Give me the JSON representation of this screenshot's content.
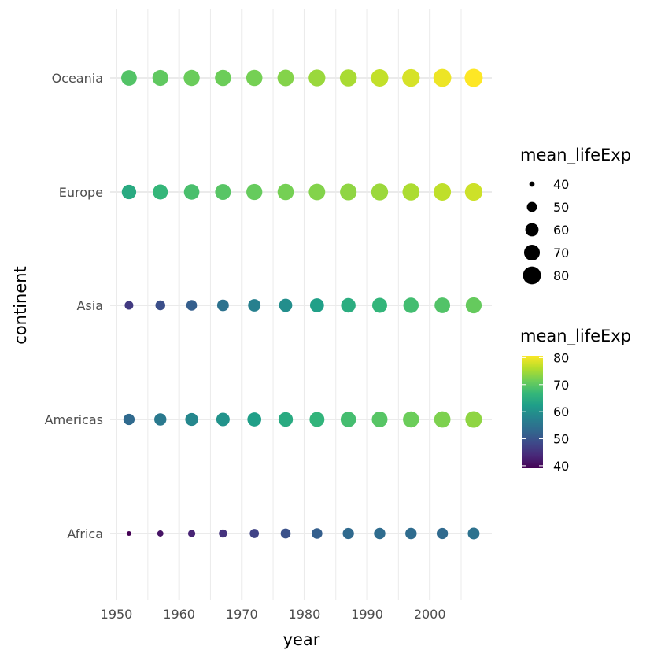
{
  "chart_data": {
    "type": "scatter",
    "xlabel": "year",
    "ylabel": "continent",
    "xlim": [
      1950,
      2007
    ],
    "x_ticks": [
      1950,
      1960,
      1970,
      1980,
      1990,
      2000
    ],
    "x_tick_labels": [
      "1950",
      "1960",
      "1970",
      "1980",
      "1990",
      "2000"
    ],
    "categories": [
      "Africa",
      "Americas",
      "Asia",
      "Europe",
      "Oceania"
    ],
    "x": [
      1952,
      1957,
      1962,
      1967,
      1972,
      1977,
      1982,
      1987,
      1992,
      1997,
      2002,
      2007
    ],
    "series": [
      {
        "category": "Africa",
        "values": [
          39.1,
          41.3,
          43.3,
          45.3,
          47.5,
          49.6,
          51.6,
          53.3,
          53.6,
          53.6,
          53.3,
          54.8
        ]
      },
      {
        "category": "Americas",
        "values": [
          53.3,
          56.0,
          58.4,
          60.4,
          62.4,
          64.4,
          66.2,
          68.1,
          69.6,
          71.2,
          72.4,
          73.6
        ]
      },
      {
        "category": "Asia",
        "values": [
          46.3,
          49.3,
          51.6,
          54.7,
          57.3,
          59.6,
          62.6,
          64.9,
          66.5,
          68.0,
          69.2,
          70.7
        ]
      },
      {
        "category": "Europe",
        "values": [
          64.4,
          66.7,
          68.5,
          69.7,
          70.8,
          71.9,
          72.8,
          73.6,
          74.4,
          75.5,
          76.7,
          77.6
        ]
      },
      {
        "category": "Oceania",
        "values": [
          69.3,
          70.3,
          71.1,
          71.3,
          71.9,
          72.9,
          74.3,
          75.3,
          76.9,
          78.2,
          79.7,
          80.7
        ]
      }
    ],
    "size_legend": {
      "title": "mean_lifeExp",
      "breaks": [
        40,
        50,
        60,
        70,
        80
      ],
      "labels": [
        "40",
        "50",
        "60",
        "70",
        "80"
      ]
    },
    "color_legend": {
      "title": "mean_lifeExp",
      "breaks": [
        40,
        50,
        60,
        70,
        80
      ],
      "labels": [
        "40",
        "50",
        "60",
        "70",
        "80"
      ],
      "limits": [
        39.1,
        80.7
      ],
      "palette": "viridis",
      "colors": [
        "#440154",
        "#482878",
        "#3e4989",
        "#31688e",
        "#26828e",
        "#1f9e89",
        "#35b779",
        "#6ece58",
        "#b5de2b",
        "#fde725"
      ]
    },
    "grid": true,
    "legend_position": "right"
  }
}
